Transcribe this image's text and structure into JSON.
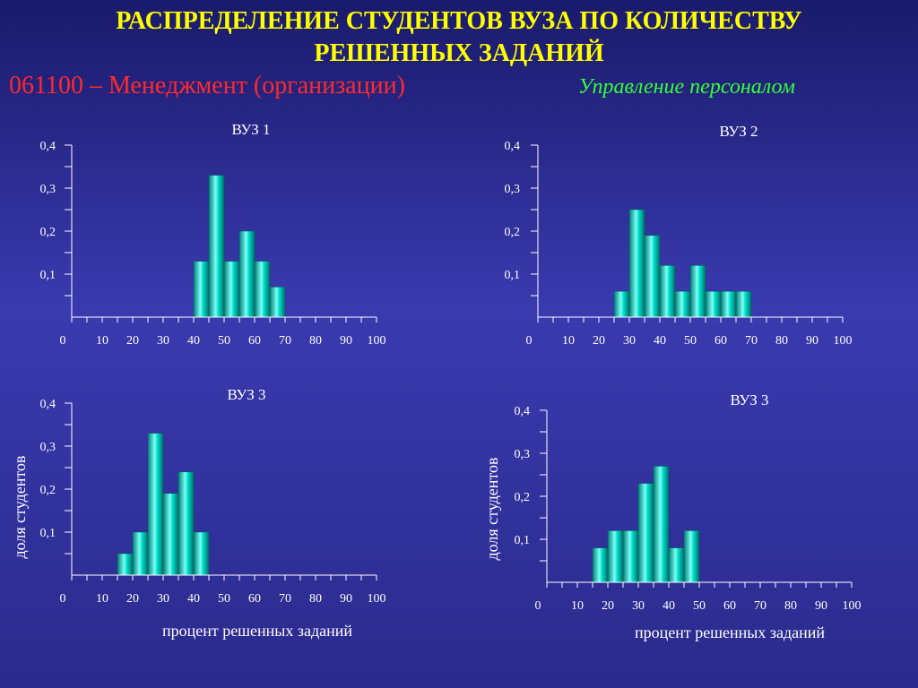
{
  "header": {
    "title_line1": "РАСПРЕДЕЛЕНИЕ СТУДЕНТОВ ВУЗА ПО КОЛИЧЕСТВУ",
    "title_line2": "РЕШЕННЫХ ЗАДАНИЙ",
    "specialty": "061100 – Менеджмент (организации)",
    "profile": "Управление персоналом"
  },
  "colors": {
    "title": "#ffff00",
    "specialty": "#ff2a2a",
    "profile": "#33ff33",
    "bar": "#00e5d0",
    "axis": "#ffffff"
  },
  "chart_data": [
    {
      "type": "bar",
      "title": "ВУЗ 1",
      "xlabel": "",
      "ylabel": "",
      "xlim": [
        0,
        100
      ],
      "ylim": [
        0,
        0.4
      ],
      "xticks": [
        0,
        10,
        20,
        30,
        40,
        50,
        60,
        70,
        80,
        90,
        100
      ],
      "xtick_labels": [
        "0",
        "10",
        "20",
        "30",
        "40",
        "50",
        "60",
        "70",
        "80",
        "90",
        "100"
      ],
      "yticks": [
        0.1,
        0.2,
        0.3,
        0.4
      ],
      "ytick_labels": [
        "0,1",
        "0,2",
        "0,3",
        "0,4"
      ],
      "bin_width": 5,
      "bins": [
        {
          "start": 40,
          "value": 0.13
        },
        {
          "start": 45,
          "value": 0.33
        },
        {
          "start": 50,
          "value": 0.13
        },
        {
          "start": 55,
          "value": 0.2
        },
        {
          "start": 60,
          "value": 0.13
        },
        {
          "start": 65,
          "value": 0.07
        }
      ]
    },
    {
      "type": "bar",
      "title": "ВУЗ 2",
      "xlabel": "",
      "ylabel": "",
      "xlim": [
        0,
        100
      ],
      "ylim": [
        0,
        0.4
      ],
      "xticks": [
        0,
        10,
        20,
        30,
        40,
        50,
        60,
        70,
        80,
        90,
        100
      ],
      "xtick_labels": [
        "0",
        "10",
        "20",
        "30",
        "40",
        "50",
        "60",
        "70",
        "80",
        "90",
        "100"
      ],
      "yticks": [
        0.1,
        0.2,
        0.3,
        0.4
      ],
      "ytick_labels": [
        "0,1",
        "0,2",
        "0,3",
        "0,4"
      ],
      "bin_width": 5,
      "bins": [
        {
          "start": 25,
          "value": 0.06
        },
        {
          "start": 30,
          "value": 0.25
        },
        {
          "start": 35,
          "value": 0.19
        },
        {
          "start": 40,
          "value": 0.12
        },
        {
          "start": 45,
          "value": 0.06
        },
        {
          "start": 50,
          "value": 0.12
        },
        {
          "start": 55,
          "value": 0.06
        },
        {
          "start": 60,
          "value": 0.06
        },
        {
          "start": 65,
          "value": 0.06
        }
      ]
    },
    {
      "type": "bar",
      "title": "ВУЗ 3",
      "xlabel": "процент решенных заданий",
      "ylabel": "доля студентов",
      "xlim": [
        0,
        100
      ],
      "ylim": [
        0,
        0.4
      ],
      "xticks": [
        0,
        10,
        20,
        30,
        40,
        50,
        60,
        70,
        80,
        90,
        100
      ],
      "xtick_labels": [
        "0",
        "10",
        "20",
        "30",
        "40",
        "50",
        "60",
        "70",
        "80",
        "90",
        "100"
      ],
      "yticks": [
        0.1,
        0.2,
        0.3,
        0.4
      ],
      "ytick_labels": [
        "0,1",
        "0,2",
        "0,3",
        "0,4"
      ],
      "bin_width": 5,
      "bins": [
        {
          "start": 15,
          "value": 0.05
        },
        {
          "start": 20,
          "value": 0.1
        },
        {
          "start": 25,
          "value": 0.33
        },
        {
          "start": 30,
          "value": 0.19
        },
        {
          "start": 35,
          "value": 0.24
        },
        {
          "start": 40,
          "value": 0.1
        }
      ]
    },
    {
      "type": "bar",
      "title": "ВУЗ 3",
      "xlabel": "процент решенных заданий",
      "ylabel": "доля студентов",
      "xlim": [
        0,
        100
      ],
      "ylim": [
        0,
        0.4
      ],
      "xticks": [
        0,
        10,
        20,
        30,
        40,
        50,
        60,
        70,
        80,
        90,
        100
      ],
      "xtick_labels": [
        "0",
        "10",
        "20",
        "30",
        "40",
        "50",
        "60",
        "70",
        "80",
        "90",
        "100"
      ],
      "yticks": [
        0.1,
        0.2,
        0.3,
        0.4
      ],
      "ytick_labels": [
        "0,1",
        "0,2",
        "0,3",
        "0,4"
      ],
      "bin_width": 5,
      "bins": [
        {
          "start": 15,
          "value": 0.08
        },
        {
          "start": 20,
          "value": 0.12
        },
        {
          "start": 25,
          "value": 0.12
        },
        {
          "start": 30,
          "value": 0.23
        },
        {
          "start": 35,
          "value": 0.27
        },
        {
          "start": 40,
          "value": 0.08
        },
        {
          "start": 45,
          "value": 0.12
        }
      ]
    }
  ]
}
